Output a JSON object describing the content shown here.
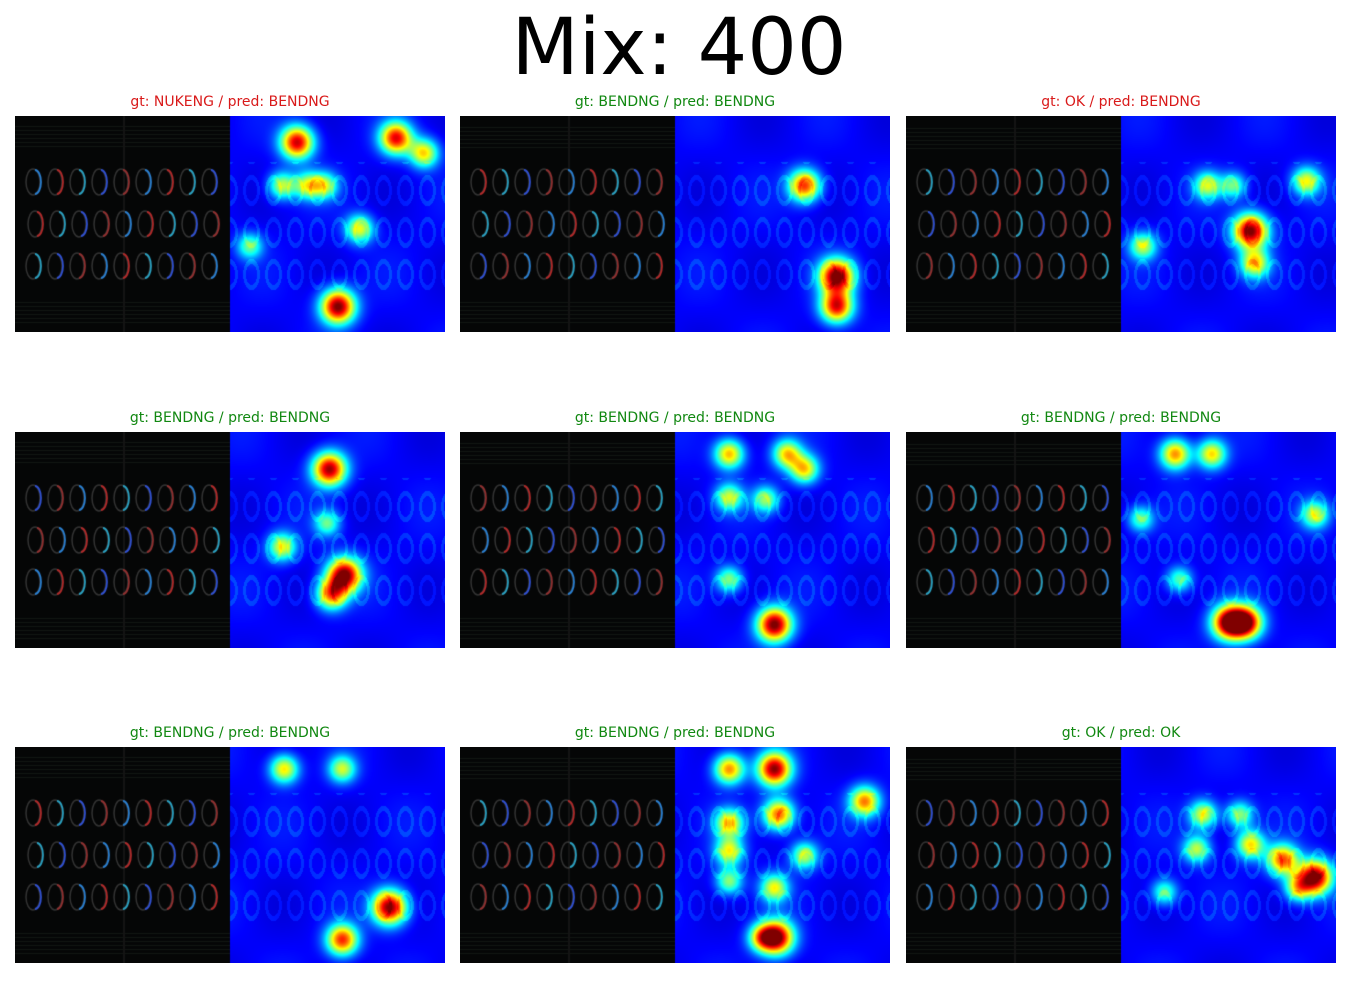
{
  "figure": {
    "title": "Mix: 400"
  },
  "colors": {
    "correct": "#118811",
    "incorrect": "#d91a1a"
  },
  "panels": [
    {
      "gt": "NUKENG",
      "pred": "BENDNG",
      "label": "gt: NUKENG / pred: BENDNG",
      "correct": false,
      "hotspots": [
        [
          0.31,
          0.12,
          0.9
        ],
        [
          0.77,
          0.1,
          0.85
        ],
        [
          0.9,
          0.17,
          0.6
        ],
        [
          0.5,
          0.88,
          1.0
        ],
        [
          0.24,
          0.32,
          0.5
        ],
        [
          0.36,
          0.32,
          0.5
        ],
        [
          0.6,
          0.52,
          0.55
        ],
        [
          0.09,
          0.6,
          0.4
        ],
        [
          0.44,
          0.32,
          0.45
        ]
      ]
    },
    {
      "gt": "BENDNG",
      "pred": "BENDNG",
      "label": "gt: BENDNG / pred: BENDNG",
      "correct": true,
      "hotspots": [
        [
          0.6,
          0.32,
          0.8
        ],
        [
          0.75,
          0.74,
          1.0
        ],
        [
          0.75,
          0.88,
          0.85
        ]
      ]
    },
    {
      "gt": "OK",
      "pred": "BENDNG",
      "label": "gt: OK / pred: BENDNG",
      "correct": false,
      "hotspots": [
        [
          0.6,
          0.53,
          1.0
        ],
        [
          0.4,
          0.32,
          0.5
        ],
        [
          0.62,
          0.68,
          0.6
        ],
        [
          0.1,
          0.6,
          0.5
        ],
        [
          0.86,
          0.3,
          0.55
        ],
        [
          0.52,
          0.32,
          0.4
        ]
      ]
    },
    {
      "gt": "BENDNG",
      "pred": "BENDNG",
      "label": "gt: BENDNG / pred: BENDNG",
      "correct": true,
      "hotspots": [
        [
          0.46,
          0.17,
          0.95
        ],
        [
          0.53,
          0.66,
          1.0
        ],
        [
          0.47,
          0.75,
          0.7
        ],
        [
          0.24,
          0.53,
          0.55
        ],
        [
          0.45,
          0.42,
          0.4
        ]
      ]
    },
    {
      "gt": "BENDNG",
      "pred": "BENDNG",
      "label": "gt: BENDNG / pred: BENDNG",
      "correct": true,
      "hotspots": [
        [
          0.25,
          0.1,
          0.65
        ],
        [
          0.52,
          0.1,
          0.6
        ],
        [
          0.6,
          0.17,
          0.6
        ],
        [
          0.25,
          0.3,
          0.5
        ],
        [
          0.42,
          0.31,
          0.45
        ],
        [
          0.46,
          0.89,
          1.0
        ],
        [
          0.25,
          0.68,
          0.45
        ]
      ]
    },
    {
      "gt": "BENDNG",
      "pred": "BENDNG",
      "label": "gt: BENDNG / pred: BENDNG",
      "correct": true,
      "hotspots": [
        [
          0.25,
          0.1,
          0.7
        ],
        [
          0.42,
          0.1,
          0.6
        ],
        [
          0.5,
          0.88,
          1.0
        ],
        [
          0.58,
          0.88,
          0.9
        ],
        [
          0.09,
          0.4,
          0.4
        ],
        [
          0.9,
          0.38,
          0.5
        ],
        [
          0.27,
          0.68,
          0.4
        ]
      ]
    },
    {
      "gt": "BENDNG",
      "pred": "BENDNG",
      "label": "gt: BENDNG / pred: BENDNG",
      "correct": true,
      "hotspots": [
        [
          0.25,
          0.1,
          0.6
        ],
        [
          0.52,
          0.1,
          0.5
        ],
        [
          0.74,
          0.74,
          1.0
        ],
        [
          0.52,
          0.89,
          0.8
        ]
      ]
    },
    {
      "gt": "BENDNG",
      "pred": "BENDNG",
      "label": "gt: BENDNG / pred: BENDNG",
      "correct": true,
      "hotspots": [
        [
          0.25,
          0.1,
          0.7
        ],
        [
          0.46,
          0.1,
          0.95
        ],
        [
          0.48,
          0.31,
          0.75
        ],
        [
          0.25,
          0.35,
          0.6
        ],
        [
          0.25,
          0.48,
          0.55
        ],
        [
          0.88,
          0.25,
          0.7
        ],
        [
          0.6,
          0.5,
          0.5
        ],
        [
          0.25,
          0.62,
          0.45
        ],
        [
          0.46,
          0.65,
          0.55
        ],
        [
          0.47,
          0.88,
          1.0
        ],
        [
          0.4,
          0.88,
          0.5
        ]
      ]
    },
    {
      "gt": "OK",
      "pred": "OK",
      "label": "gt: OK / pred: OK",
      "correct": true,
      "hotspots": [
        [
          0.9,
          0.6,
          1.0
        ],
        [
          0.75,
          0.52,
          0.75
        ],
        [
          0.6,
          0.45,
          0.6
        ],
        [
          0.38,
          0.31,
          0.55
        ],
        [
          0.55,
          0.31,
          0.45
        ],
        [
          0.35,
          0.47,
          0.5
        ],
        [
          0.82,
          0.65,
          0.5
        ],
        [
          0.2,
          0.67,
          0.4
        ]
      ]
    }
  ]
}
